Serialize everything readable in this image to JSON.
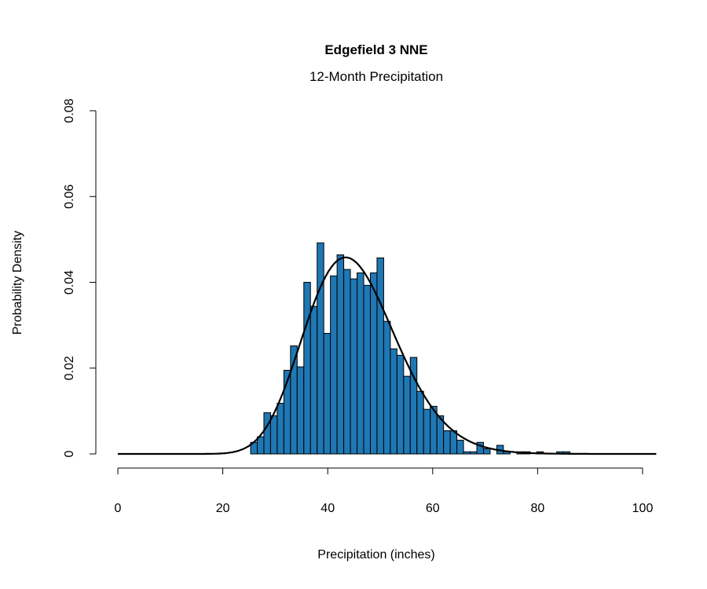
{
  "chart_data": {
    "type": "bar",
    "title": "Edgefield 3 NNE",
    "subtitle": "12-Month Precipitation",
    "xlabel": "Precipitation (inches)",
    "ylabel": "Probability Density",
    "xlim": [
      0,
      100
    ],
    "ylim": [
      0,
      0.08
    ],
    "xticks": [
      "0",
      "20",
      "40",
      "60",
      "80",
      "100"
    ],
    "yticks": [
      "0",
      "0.02",
      "0.04",
      "0.06",
      "0.08"
    ],
    "grid": false,
    "bar_color": "#1f77b4",
    "bin_start": 25.3,
    "bin_width": 1.268,
    "densities": [
      0.0027,
      0.004,
      0.0096,
      0.0089,
      0.0118,
      0.0195,
      0.0252,
      0.0203,
      0.04,
      0.0344,
      0.0492,
      0.0281,
      0.0415,
      0.0464,
      0.043,
      0.0408,
      0.0422,
      0.0393,
      0.0422,
      0.0457,
      0.0309,
      0.0245,
      0.023,
      0.0181,
      0.0225,
      0.0146,
      0.0104,
      0.0111,
      0.0089,
      0.0054,
      0.0054,
      0.0032,
      0.0005,
      0.0005,
      0.0027,
      0.0012,
      0,
      0.002,
      0.0005,
      0,
      0.0005,
      0.0005,
      0,
      0.0005,
      0,
      0,
      0.0005,
      0.0005
    ],
    "fitted_curve": {
      "distribution": "gamma",
      "shape": 26,
      "scale": 1.736,
      "x_range": [
        0,
        102.7
      ],
      "color": "#000000"
    }
  }
}
